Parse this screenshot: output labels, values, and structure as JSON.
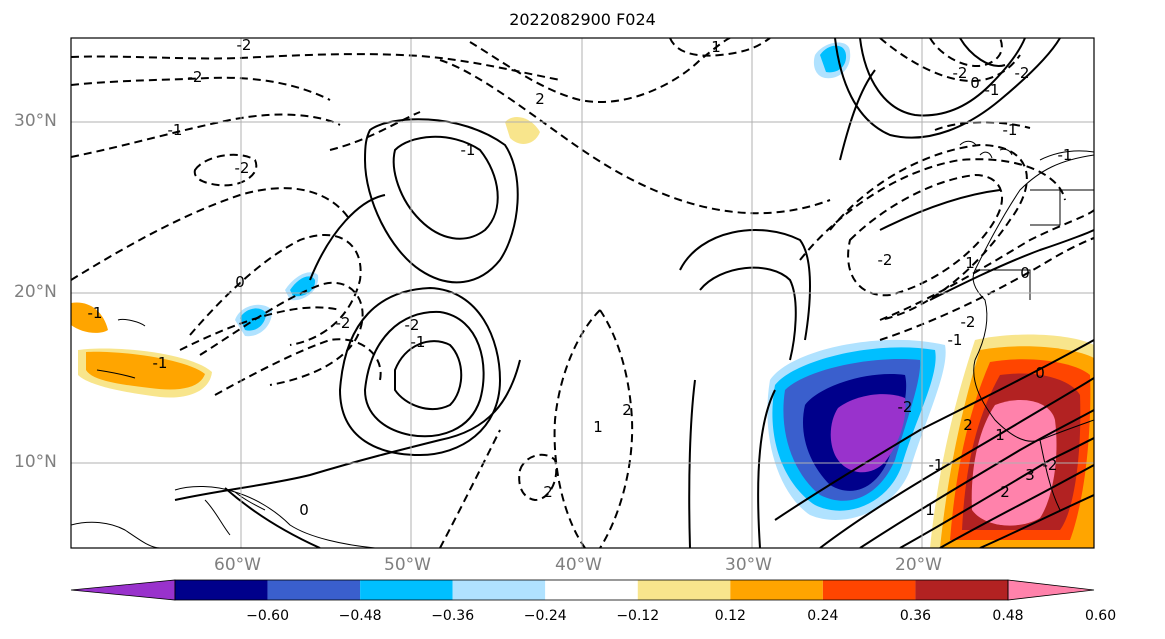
{
  "title": "2022082900 F024",
  "axes": {
    "lat_labels": [
      "30°N",
      "20°N",
      "10°N"
    ],
    "lon_labels": [
      "60°W",
      "50°W",
      "40°W",
      "30°W",
      "20°W"
    ]
  },
  "colorbar": {
    "ticks": [
      "−0.60",
      "−0.48",
      "−0.36",
      "−0.24",
      "−0.12",
      "0.12",
      "0.24",
      "0.36",
      "0.48",
      "0.60"
    ],
    "colors": [
      "#9932cc",
      "#00008b",
      "#3a5fcd",
      "#00bfff",
      "#b0e2ff",
      "#ffffff",
      "#f8e58c",
      "#ffa500",
      "#ff4500",
      "#b22222",
      "#ff82ab"
    ]
  },
  "contour_labels": [
    "-2",
    "-2",
    "-1",
    "-2",
    "0",
    "-2",
    "-1",
    "-2",
    "-1",
    "0",
    "2",
    "2",
    "1",
    "2",
    "1",
    "-2",
    "0",
    "-1",
    "-2",
    "-1",
    "-2",
    "1",
    "0",
    "-2",
    "-1",
    "-2",
    "-1",
    "1",
    "2",
    "3",
    "-2",
    "-1",
    "-1",
    "-1",
    "2",
    "0",
    "1"
  ]
}
